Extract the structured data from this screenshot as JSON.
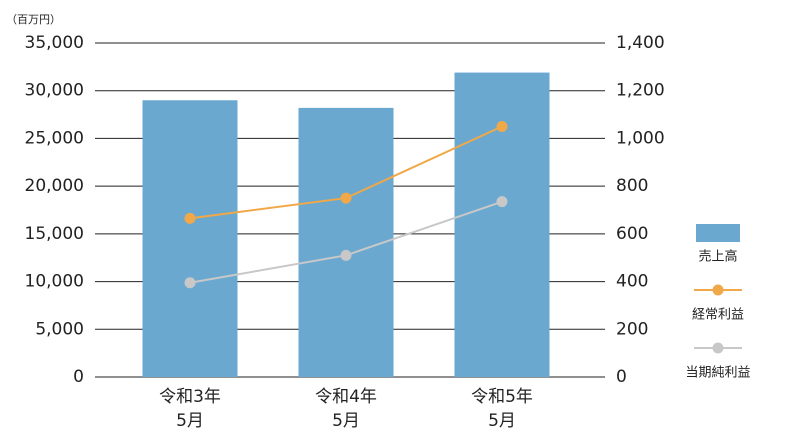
{
  "chart_data": {
    "type": "bar-line",
    "y_unit_label": "（百万円）",
    "categories": [
      [
        "令和3年",
        "5月"
      ],
      [
        "令和4年",
        "5月"
      ],
      [
        "令和5年",
        "5月"
      ]
    ],
    "series": [
      {
        "name": "売上高",
        "type": "bar",
        "color": "#6aa8d0",
        "values": [
          29000,
          28200,
          31900
        ]
      },
      {
        "name": "経常利益",
        "type": "line",
        "axis": "y2",
        "color": "#f0a848",
        "values": [
          665,
          750,
          1050
        ]
      },
      {
        "name": "当期純利益",
        "type": "line",
        "axis": "y2",
        "color": "#c8c8c8",
        "values": [
          395,
          510,
          735
        ]
      }
    ],
    "ylim": [
      0,
      35000
    ],
    "yticks": [
      0,
      {
        "value": 5000,
        "label": "5,000"
      },
      {
        "value": 10000,
        "label": "10,000"
      },
      {
        "value": 15000,
        "label": "15,000"
      },
      {
        "value": 20000,
        "label": "20,000"
      },
      {
        "value": 25000,
        "label": "25,000"
      },
      {
        "value": 30000,
        "label": "30,000"
      },
      {
        "value": 35000,
        "label": "35,000"
      }
    ],
    "y2lim": [
      0,
      1400
    ],
    "y2ticks": [
      0,
      200,
      400,
      600,
      800,
      {
        "value": 1000,
        "label": "1,000"
      },
      {
        "value": 1200,
        "label": "1,200"
      },
      {
        "value": 1400,
        "label": "1,400"
      }
    ],
    "grid": true
  }
}
